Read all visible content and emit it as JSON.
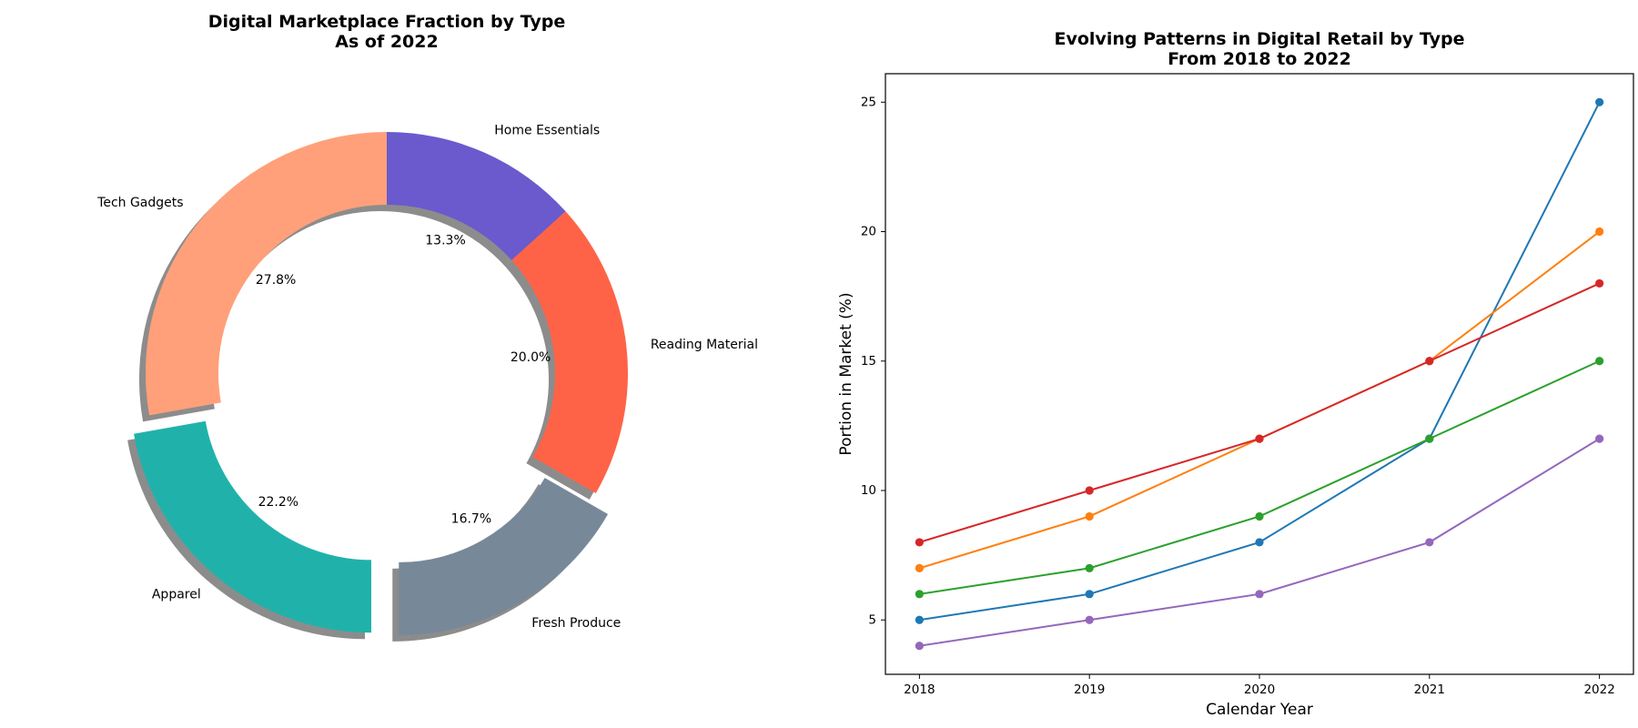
{
  "chart_data": [
    {
      "type": "pie",
      "variant": "donut",
      "title": [
        "Digital Marketplace Fraction by Type",
        "As of 2022"
      ],
      "shadow": true,
      "slices": [
        {
          "label": "Home Essentials",
          "value": 13.3,
          "pct_label": "13.3%",
          "color": "#6A5ACD",
          "explode": false
        },
        {
          "label": "Reading Material",
          "value": 20.0,
          "pct_label": "20.0%",
          "color": "#FF6347",
          "explode": false
        },
        {
          "label": "Fresh Produce",
          "value": 16.7,
          "pct_label": "16.7%",
          "color": "#778899",
          "explode": true
        },
        {
          "label": "Apparel",
          "value": 22.2,
          "pct_label": "22.2%",
          "color": "#20B2AA",
          "explode": true
        },
        {
          "label": "Tech Gadgets",
          "value": 27.8,
          "pct_label": "27.8%",
          "color": "#FFA07A",
          "explode": false
        }
      ]
    },
    {
      "type": "line",
      "title": [
        "Evolving Patterns in Digital Retail by Type",
        "From 2018 to 2022"
      ],
      "xlabel": "Calendar Year",
      "ylabel": "Portion in Market (%)",
      "x": [
        "2018",
        "2019",
        "2020",
        "2021",
        "2022"
      ],
      "xlim": [
        2017.8,
        2022.2
      ],
      "ylim": [
        2.9,
        26.1
      ],
      "yticks": [
        5,
        10,
        15,
        20,
        25
      ],
      "grid": false,
      "series": [
        {
          "color": "#1f77b4",
          "values": [
            5,
            6,
            8,
            12,
            25
          ]
        },
        {
          "color": "#ff7f0e",
          "values": [
            7,
            9,
            12,
            15,
            20
          ]
        },
        {
          "color": "#2ca02c",
          "values": [
            6,
            7,
            9,
            12,
            15
          ]
        },
        {
          "color": "#d62728",
          "values": [
            8,
            10,
            12,
            15,
            18
          ]
        },
        {
          "color": "#9467bd",
          "values": [
            4,
            5,
            6,
            8,
            12
          ]
        }
      ]
    }
  ]
}
